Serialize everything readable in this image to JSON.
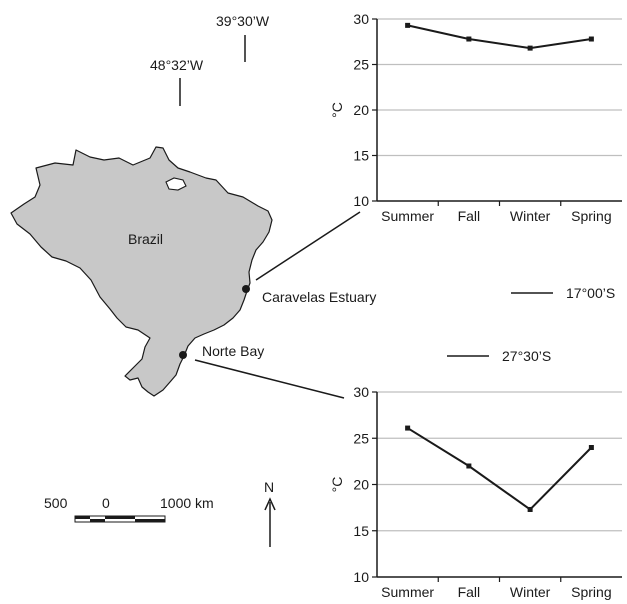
{
  "map": {
    "country_label": "Brazil",
    "sites": [
      {
        "name": "Caravelas Estuary"
      },
      {
        "name": "Norte Bay"
      }
    ],
    "longitudes": [
      "39°30’W",
      "48°32’W"
    ],
    "latitudes": [
      "17°00’S",
      "27°30’S"
    ],
    "scale": {
      "ticks": [
        "500",
        "0",
        "1000 km"
      ]
    },
    "north_label": "N",
    "colors": {
      "land": "#c8c8c8",
      "outline": "#1a1a1a",
      "grid": "#bfbfbf"
    }
  },
  "chart_data": [
    {
      "type": "line",
      "site": "Caravelas Estuary",
      "categories": [
        "Summer",
        "Fall",
        "Winter",
        "Spring"
      ],
      "values": [
        29.3,
        27.8,
        26.8,
        27.8
      ],
      "ylabel": "°C",
      "ylim": [
        10,
        30
      ],
      "yticks": [
        "10",
        "15",
        "20",
        "25",
        "30"
      ],
      "grid": true
    },
    {
      "type": "line",
      "site": "Norte Bay",
      "categories": [
        "Summer",
        "Fall",
        "Winter",
        "Spring"
      ],
      "values": [
        26.1,
        22.0,
        17.3,
        24.0
      ],
      "ylabel": "°C",
      "ylim": [
        10,
        30
      ],
      "yticks": [
        "10",
        "15",
        "20",
        "25",
        "30"
      ],
      "grid": true
    }
  ]
}
